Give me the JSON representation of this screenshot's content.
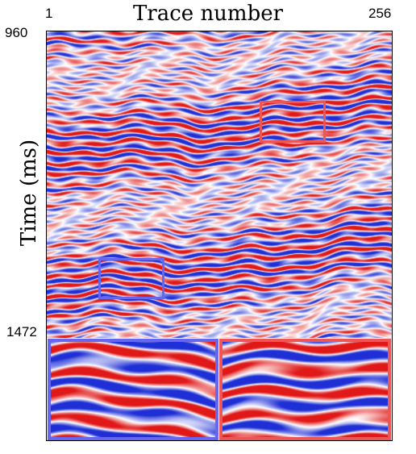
{
  "title": "Trace number",
  "ylabel": "Time (ms)",
  "x_ticks": {
    "start": "1",
    "end": "256"
  },
  "y_ticks": {
    "start": "960",
    "end": "1472"
  },
  "colormap": {
    "negative": "#1f2fd6",
    "zero": "#ffffff",
    "positive": "#e01818"
  },
  "regions": {
    "red": {
      "color": "#ee5555"
    },
    "blue": {
      "color": "#6666ee"
    }
  }
}
